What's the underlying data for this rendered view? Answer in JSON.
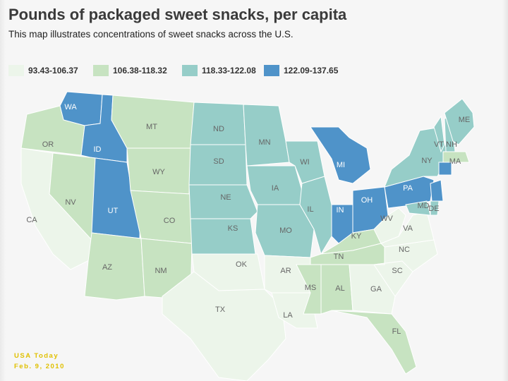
{
  "title": "Pounds of packaged sweet snacks, per capita",
  "subtitle": "This map illustrates concentrations of sweet snacks across the U.S.",
  "legend": [
    {
      "label": "93.43-106.37",
      "color": "#ecf5ea"
    },
    {
      "label": "106.38-118.32",
      "color": "#c7e3c1"
    },
    {
      "label": "118.33-122.08",
      "color": "#96cdc8"
    },
    {
      "label": "122.09-137.65",
      "color": "#4f93c9"
    }
  ],
  "states": [
    {
      "code": "WA",
      "label": "WA",
      "bin": 3
    },
    {
      "code": "OR",
      "label": "OR",
      "bin": 1
    },
    {
      "code": "CA",
      "label": "CA",
      "bin": 0
    },
    {
      "code": "ID",
      "label": "ID",
      "bin": 3
    },
    {
      "code": "NV",
      "label": "NV",
      "bin": 1
    },
    {
      "code": "UT",
      "label": "UT",
      "bin": 3
    },
    {
      "code": "AZ",
      "label": "AZ",
      "bin": 1
    },
    {
      "code": "MT",
      "label": "MT",
      "bin": 1
    },
    {
      "code": "WY",
      "label": "WY",
      "bin": 1
    },
    {
      "code": "CO",
      "label": "CO",
      "bin": 1
    },
    {
      "code": "NM",
      "label": "NM",
      "bin": 1
    },
    {
      "code": "ND",
      "label": "ND",
      "bin": 2
    },
    {
      "code": "SD",
      "label": "SD",
      "bin": 2
    },
    {
      "code": "NE",
      "label": "NE",
      "bin": 2
    },
    {
      "code": "KS",
      "label": "KS",
      "bin": 2
    },
    {
      "code": "OK",
      "label": "OK",
      "bin": 0
    },
    {
      "code": "TX",
      "label": "TX",
      "bin": 0
    },
    {
      "code": "MN",
      "label": "MN",
      "bin": 2
    },
    {
      "code": "IA",
      "label": "IA",
      "bin": 2
    },
    {
      "code": "MO",
      "label": "MO",
      "bin": 2
    },
    {
      "code": "AR",
      "label": "AR",
      "bin": 0
    },
    {
      "code": "LA",
      "label": "LA",
      "bin": 0
    },
    {
      "code": "WI",
      "label": "WI",
      "bin": 2
    },
    {
      "code": "IL",
      "label": "IL",
      "bin": 2
    },
    {
      "code": "MI",
      "label": "MI",
      "bin": 3
    },
    {
      "code": "IN",
      "label": "IN",
      "bin": 3
    },
    {
      "code": "OH",
      "label": "OH",
      "bin": 3
    },
    {
      "code": "KY",
      "label": "KY",
      "bin": 1
    },
    {
      "code": "TN",
      "label": "TN",
      "bin": 1
    },
    {
      "code": "MS",
      "label": "MS",
      "bin": 1
    },
    {
      "code": "AL",
      "label": "AL",
      "bin": 1
    },
    {
      "code": "GA",
      "label": "GA",
      "bin": 0
    },
    {
      "code": "FL",
      "label": "FL",
      "bin": 1
    },
    {
      "code": "SC",
      "label": "SC",
      "bin": 0
    },
    {
      "code": "NC",
      "label": "NC",
      "bin": 0
    },
    {
      "code": "VA",
      "label": "VA",
      "bin": 0
    },
    {
      "code": "WV",
      "label": "WV",
      "bin": 0
    },
    {
      "code": "PA",
      "label": "PA",
      "bin": 3
    },
    {
      "code": "NY",
      "label": "NY",
      "bin": 2
    },
    {
      "code": "VT",
      "label": "VT",
      "bin": 2
    },
    {
      "code": "NH",
      "label": "NH",
      "bin": 2
    },
    {
      "code": "ME",
      "label": "ME",
      "bin": 2
    },
    {
      "code": "MA",
      "label": "MA",
      "bin": 1
    },
    {
      "code": "CT",
      "label": "",
      "bin": 3
    },
    {
      "code": "NJ",
      "label": "",
      "bin": 3
    },
    {
      "code": "MD",
      "label": "MD",
      "bin": 2
    },
    {
      "code": "DE",
      "label": "DE",
      "bin": 2
    }
  ],
  "credit": {
    "line1": "USA Today",
    "line2": "Feb. 9, 2010"
  }
}
